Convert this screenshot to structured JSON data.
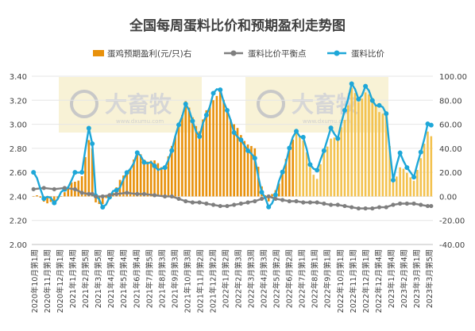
{
  "chart_data": {
    "type": "bar+line",
    "title": "全国每周蛋料比价和预期盈利走势图",
    "legend": [
      {
        "name": "蛋鸡预期盈利(元/只)右",
        "kind": "bar",
        "color": "#e8910b"
      },
      {
        "name": "蛋料比价平衡点",
        "kind": "line",
        "color": "#7f7f7f"
      },
      {
        "name": "蛋料比价",
        "kind": "line",
        "color": "#1ea7d8"
      }
    ],
    "y_left": {
      "min": 2.0,
      "max": 3.4,
      "ticks": [
        "2.00",
        "2.20",
        "2.40",
        "2.60",
        "2.80",
        "3.00",
        "3.20",
        "3.40"
      ]
    },
    "y_right": {
      "min": -40,
      "max": 100,
      "ticks": [
        "-40.00",
        "-20.00",
        "0.00",
        "20.00",
        "40.00",
        "60.00",
        "80.00",
        "100.00"
      ]
    },
    "x_labels": [
      "2020年10月第1周",
      "2020年11月第1周",
      "2020年12月第1周",
      "2021年1月第4周",
      "2021年2月第5周",
      "2021年3月第5周",
      "2021年4月第4周",
      "2021年5月第4周",
      "2021年6月第4周",
      "2021年7月第5周",
      "2021年8月第3周",
      "2021年9月第3周",
      "2021年10月第3周",
      "2021年11月第2周",
      "2021年12月第2周",
      "2022年1月第2周",
      "2022年2月第3周",
      "2022年3月第3周",
      "2022年4月第3周",
      "2022年5月第2周",
      "2022年6月第2周",
      "2022年7月第1周",
      "2022年8月第1周",
      "2022年9月第1周",
      "2022年10月第1周",
      "2022年11月第1周",
      "2022年12月第1周",
      "2022年12月第4周",
      "2023年1月第4周",
      "2023年2月第4周",
      "2023年3月第1周",
      "2023年3月第5周"
    ],
    "watermark": "大畜牧",
    "watermark_sub": "www.dxumu.com",
    "anchors": [
      [
        0,
        2.6,
        2.46,
        0
      ],
      [
        3,
        2.4,
        2.47,
        -3
      ],
      [
        6,
        2.36,
        2.46,
        -6
      ],
      [
        9,
        2.45,
        2.47,
        5
      ],
      [
        12,
        2.58,
        2.46,
        12
      ],
      [
        14,
        2.62,
        2.43,
        18
      ],
      [
        16,
        2.95,
        2.42,
        45
      ],
      [
        17,
        2.85,
        2.42,
        40
      ],
      [
        18,
        2.42,
        2.4,
        -3
      ],
      [
        20,
        2.3,
        2.4,
        -8
      ],
      [
        22,
        2.4,
        2.41,
        2
      ],
      [
        24,
        2.45,
        2.42,
        8
      ],
      [
        27,
        2.58,
        2.43,
        20
      ],
      [
        30,
        2.75,
        2.42,
        36
      ],
      [
        32,
        2.7,
        2.42,
        32
      ],
      [
        35,
        2.65,
        2.41,
        28
      ],
      [
        38,
        2.62,
        2.4,
        25
      ],
      [
        40,
        2.8,
        2.4,
        40
      ],
      [
        42,
        2.98,
        2.38,
        60
      ],
      [
        44,
        3.18,
        2.36,
        78
      ],
      [
        46,
        3.02,
        2.35,
        66
      ],
      [
        48,
        2.9,
        2.35,
        55
      ],
      [
        50,
        3.08,
        2.34,
        70
      ],
      [
        52,
        3.25,
        2.33,
        82
      ],
      [
        54,
        3.3,
        2.32,
        86
      ],
      [
        56,
        3.1,
        2.32,
        72
      ],
      [
        58,
        2.95,
        2.33,
        60
      ],
      [
        60,
        2.85,
        2.34,
        50
      ],
      [
        62,
        2.8,
        2.35,
        45
      ],
      [
        64,
        2.7,
        2.36,
        38
      ],
      [
        66,
        2.45,
        2.38,
        10
      ],
      [
        68,
        2.3,
        2.4,
        -5
      ],
      [
        70,
        2.42,
        2.38,
        5
      ],
      [
        72,
        2.6,
        2.37,
        20
      ],
      [
        74,
        2.8,
        2.36,
        40
      ],
      [
        76,
        2.95,
        2.36,
        55
      ],
      [
        78,
        2.88,
        2.35,
        45
      ],
      [
        80,
        2.68,
        2.35,
        25
      ],
      [
        82,
        2.6,
        2.35,
        15
      ],
      [
        84,
        2.8,
        2.34,
        35
      ],
      [
        86,
        2.95,
        2.33,
        50
      ],
      [
        88,
        2.9,
        2.33,
        48
      ],
      [
        90,
        3.1,
        2.32,
        65
      ],
      [
        92,
        3.35,
        2.31,
        90
      ],
      [
        94,
        3.2,
        2.3,
        78
      ],
      [
        96,
        3.32,
        2.3,
        88
      ],
      [
        98,
        3.2,
        2.3,
        80
      ],
      [
        100,
        3.15,
        2.31,
        72
      ],
      [
        102,
        3.1,
        2.31,
        68
      ],
      [
        104,
        2.52,
        2.33,
        12
      ],
      [
        106,
        2.78,
        2.34,
        25
      ],
      [
        108,
        2.62,
        2.34,
        18
      ],
      [
        110,
        2.58,
        2.34,
        15
      ],
      [
        112,
        2.75,
        2.33,
        30
      ],
      [
        114,
        3.02,
        2.32,
        55
      ],
      [
        115,
        2.98,
        2.32,
        52
      ]
    ]
  }
}
